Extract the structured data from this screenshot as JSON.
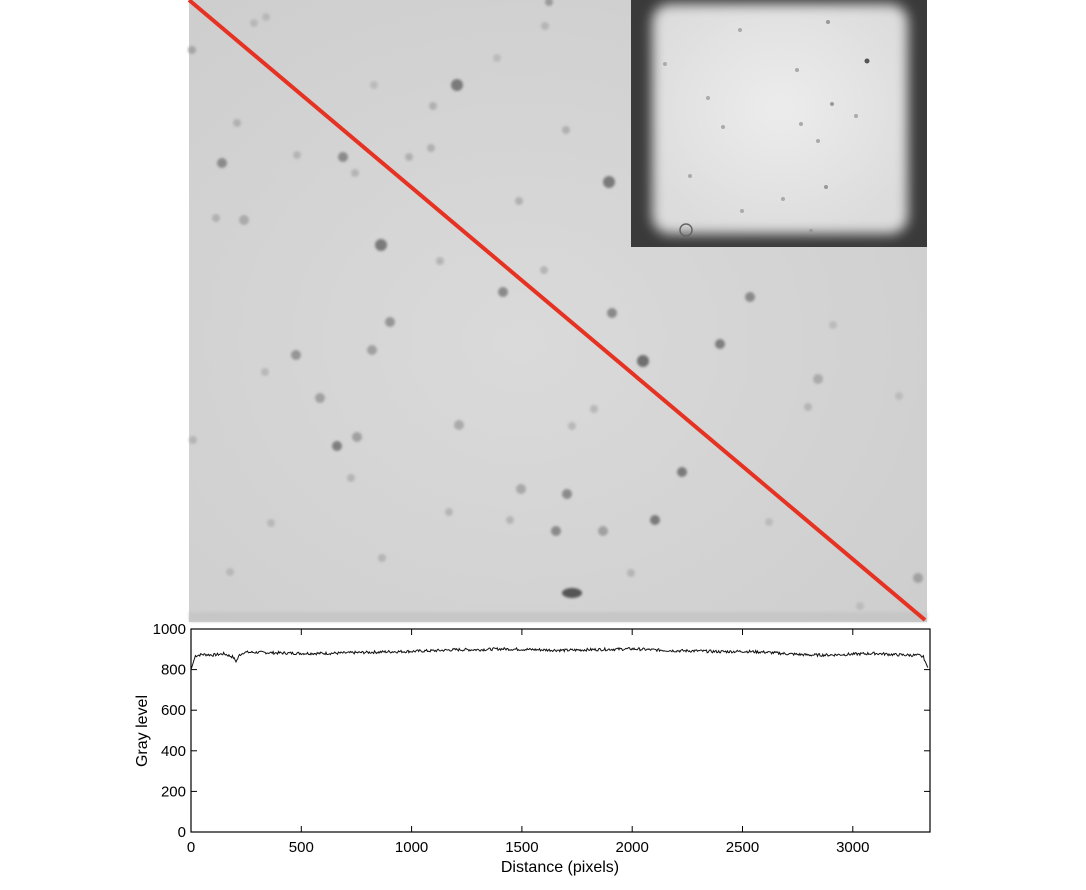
{
  "image_panel": {
    "background_color": "#d4d4d4",
    "line_color": "#e63222",
    "particle_color": "#8c8c8c",
    "inset_frame_color": "#1a1a1a",
    "inset_field_color": "#e4e4e4"
  },
  "chart_data": {
    "type": "line",
    "xlabel": "Distance (pixels)",
    "ylabel": "Gray level",
    "xlim": [
      0,
      3350
    ],
    "ylim": [
      0,
      1000
    ],
    "xticks": [
      0,
      500,
      1000,
      1500,
      2000,
      2500,
      3000
    ],
    "yticks": [
      0,
      200,
      400,
      600,
      800,
      1000
    ],
    "grid": false,
    "line_color": "#111111",
    "series": [
      {
        "x": [
          0,
          20,
          50,
          100,
          150,
          190,
          205,
          220,
          240,
          300,
          400,
          500,
          600,
          700,
          800,
          900,
          1000,
          1100,
          1200,
          1300,
          1400,
          1500,
          1600,
          1700,
          1800,
          1900,
          2000,
          2100,
          2200,
          2300,
          2400,
          2500,
          2600,
          2700,
          2800,
          2900,
          3000,
          3100,
          3200,
          3300,
          3320,
          3340
        ],
        "y": [
          800,
          868,
          875,
          872,
          878,
          862,
          840,
          872,
          885,
          885,
          882,
          880,
          880,
          882,
          885,
          888,
          890,
          893,
          898,
          898,
          902,
          900,
          897,
          895,
          898,
          900,
          902,
          897,
          893,
          892,
          888,
          890,
          886,
          878,
          872,
          872,
          876,
          880,
          873,
          870,
          862,
          810
        ]
      }
    ]
  }
}
